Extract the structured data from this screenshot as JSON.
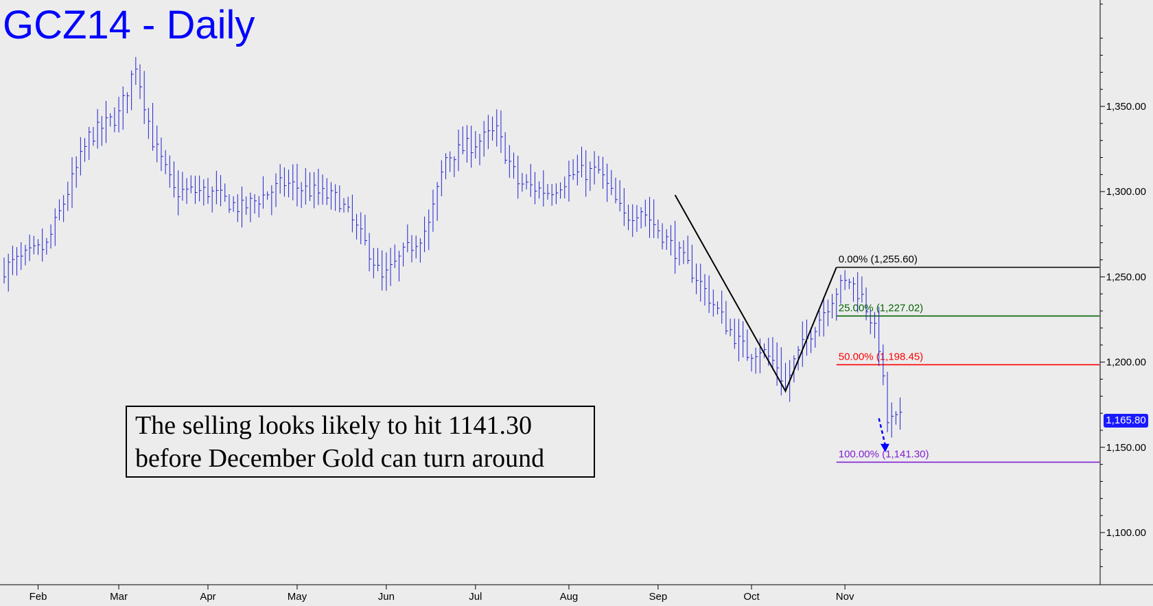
{
  "chart_data": {
    "type": "ohlc",
    "title": "GCZ14 - Daily",
    "ylim": [
      1075,
      1415
    ],
    "y_ticks": [
      1100,
      1150,
      1200,
      1250,
      1300,
      1350
    ],
    "y_tick_labels": [
      "1,100.00",
      "1,150.00",
      "1,200.00",
      "1,250.00",
      "1,300.00",
      "1,350.00"
    ],
    "x_tick_labels": [
      "Feb",
      "Mar",
      "Apr",
      "May",
      "Jun",
      "Jul",
      "Aug",
      "Sep",
      "Oct",
      "Nov"
    ],
    "last_price_label": "1,165.80",
    "grid": false,
    "price_path": [
      {
        "x": 0,
        "y": 1255
      },
      {
        "x": 10,
        "y": 1268
      },
      {
        "x": 20,
        "y": 1332
      },
      {
        "x": 27,
        "y": 1345
      },
      {
        "x": 31,
        "y": 1375
      },
      {
        "x": 35,
        "y": 1330
      },
      {
        "x": 40,
        "y": 1300
      },
      {
        "x": 48,
        "y": 1300
      },
      {
        "x": 56,
        "y": 1290
      },
      {
        "x": 66,
        "y": 1305
      },
      {
        "x": 79,
        "y": 1295
      },
      {
        "x": 86,
        "y": 1265
      },
      {
        "x": 89,
        "y": 1248
      },
      {
        "x": 93,
        "y": 1260
      },
      {
        "x": 100,
        "y": 1280
      },
      {
        "x": 104,
        "y": 1320
      },
      {
        "x": 112,
        "y": 1330
      },
      {
        "x": 116,
        "y": 1335
      },
      {
        "x": 121,
        "y": 1305
      },
      {
        "x": 128,
        "y": 1300
      },
      {
        "x": 134,
        "y": 1310
      },
      {
        "x": 140,
        "y": 1312
      },
      {
        "x": 146,
        "y": 1285
      },
      {
        "x": 150,
        "y": 1290
      },
      {
        "x": 155,
        "y": 1275
      },
      {
        "x": 163,
        "y": 1250
      },
      {
        "x": 170,
        "y": 1222
      },
      {
        "x": 175,
        "y": 1205
      },
      {
        "x": 178,
        "y": 1208
      },
      {
        "x": 182,
        "y": 1198
      },
      {
        "x": 184,
        "y": 1185
      },
      {
        "x": 186,
        "y": 1200
      },
      {
        "x": 190,
        "y": 1218
      },
      {
        "x": 196,
        "y": 1242
      },
      {
        "x": 199,
        "y": 1248
      },
      {
        "x": 202,
        "y": 1238
      },
      {
        "x": 204,
        "y": 1226
      },
      {
        "x": 206,
        "y": 1210
      },
      {
        "x": 208,
        "y": 1165
      },
      {
        "x": 211,
        "y": 1166
      }
    ],
    "pattern_line": [
      {
        "x": 158,
        "y": 1298
      },
      {
        "x": 184,
        "y": 1183
      },
      {
        "x": 196,
        "y": 1255.6
      }
    ],
    "target_arrow": {
      "from": {
        "x": 206,
        "y": 1167
      },
      "to": {
        "x": 207.5,
        "y": 1148
      }
    },
    "levels": [
      {
        "label": "0.00% (1,255.60)",
        "value": 1255.6,
        "color": "#000000"
      },
      {
        "label": "25.00% (1,227.02)",
        "value": 1227.02,
        "color": "#006400"
      },
      {
        "label": "50.00% (1,198.45)",
        "value": 1198.45,
        "color": "#ff0000"
      },
      {
        "label": "100.00% (1,141.30)",
        "value": 1141.3,
        "color": "#7f1fd0"
      }
    ],
    "colors": {
      "bars": "#2020d0",
      "title": "#0000ff",
      "pattern": "#000000",
      "arrow": "#0000ff"
    }
  },
  "note": {
    "line1": "The selling looks likely to hit 1141.30",
    "line2": "before December Gold can turn around"
  }
}
